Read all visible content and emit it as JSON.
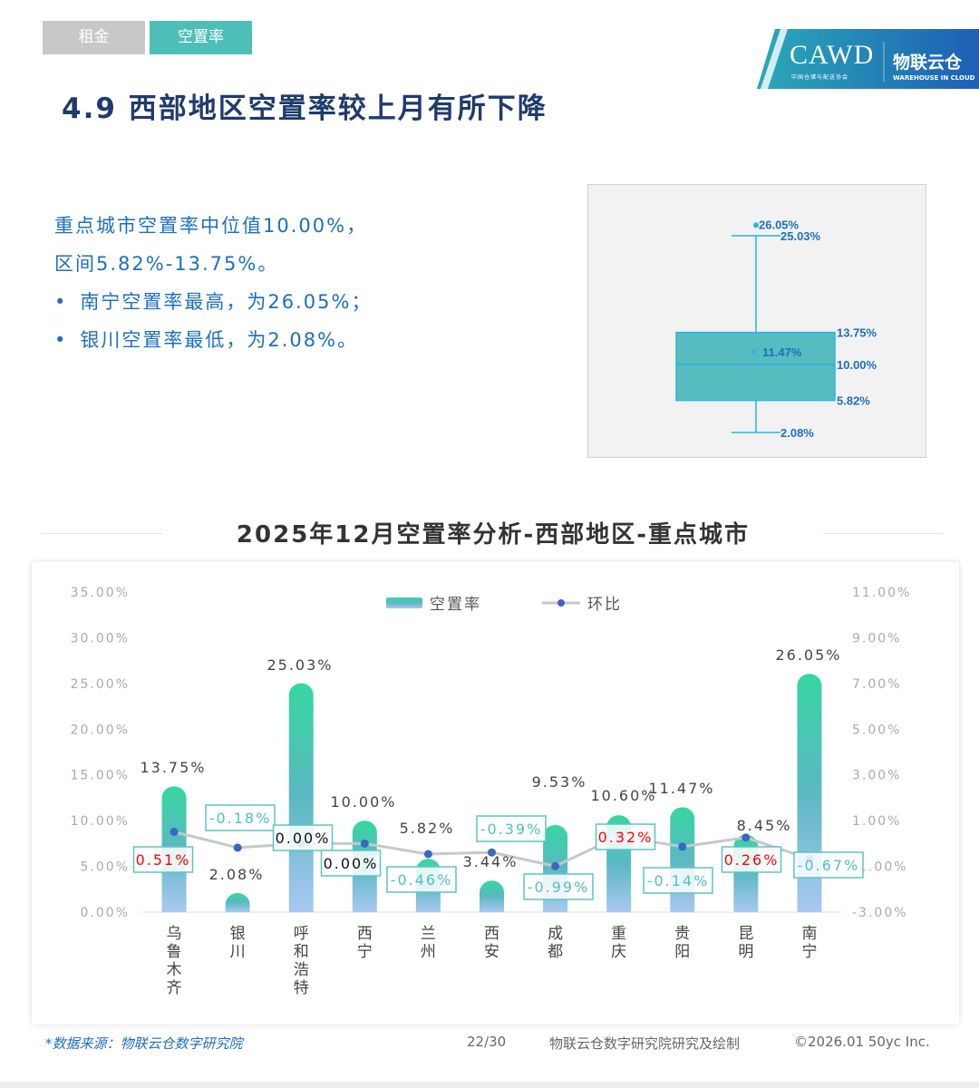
{
  "tabs": [
    {
      "label": "租金",
      "active": false,
      "color": "#c8c8c8"
    },
    {
      "label": "空置率",
      "active": true,
      "color": "#4dbfb8"
    }
  ],
  "logo": {
    "org1": "CAWD",
    "org1_sub": "中国仓储与配送协会",
    "org2": "物联云仓",
    "org2_sub": "WAREHOUSE IN CLOUD"
  },
  "heading": "4.9 西部地区空置率较上月有所下降",
  "summary": {
    "line1": "重点城市空置率中位值10.00%，",
    "line2": "区间5.82%-13.75%。",
    "bullets": [
      "南宁空置率最高，为26.05%；",
      "银川空置率最低，为2.08%。"
    ]
  },
  "boxplot": {
    "min": 2.08,
    "q1": 5.82,
    "median": 10.0,
    "mean": 11.47,
    "q3": 13.75,
    "max": 25.03,
    "outlier": 26.05,
    "labels": {
      "min": "2.08%",
      "q1": "5.82%",
      "median": "10.00%",
      "mean": "11.47%",
      "q3": "13.75%",
      "max": "25.03%",
      "outlier": "26.05%"
    }
  },
  "chart_title": "2025年12月空置率分析-西部地区-重点城市",
  "chart_data": {
    "type": "bar+line",
    "categories": [
      "乌鲁木齐",
      "银川",
      "呼和浩特",
      "西宁",
      "兰州",
      "西安",
      "成都",
      "重庆",
      "贵阳",
      "昆明",
      "南宁"
    ],
    "series": [
      {
        "name": "空置率",
        "type": "bar",
        "axis": "left",
        "values": [
          13.75,
          2.08,
          25.03,
          10.0,
          5.82,
          3.44,
          9.53,
          10.6,
          11.47,
          8.45,
          26.05
        ],
        "labels": [
          "13.75%",
          "2.08%",
          "25.03%",
          "10.00%",
          "5.82%",
          "3.44%",
          "9.53%",
          "10.60%",
          "11.47%",
          "8.45%",
          "26.05%"
        ]
      },
      {
        "name": "环比",
        "type": "line",
        "axis": "right",
        "values": [
          0.51,
          -0.18,
          0.0,
          0.0,
          -0.46,
          -0.39,
          -0.99,
          0.32,
          -0.14,
          0.26,
          -0.67
        ],
        "labels": [
          "0.51%",
          "-0.18%",
          "0.00%",
          "0.00%",
          "-0.46%",
          "-0.39%",
          "-0.99%",
          "0.32%",
          "-0.14%",
          "0.26%",
          "-0.67%"
        ]
      }
    ],
    "left_axis": {
      "range": [
        0,
        35
      ],
      "ticks": [
        "0.00%",
        "5.00%",
        "10.00%",
        "15.00%",
        "20.00%",
        "25.00%",
        "30.00%",
        "35.00%"
      ]
    },
    "right_axis": {
      "range": [
        -3,
        11
      ],
      "ticks": [
        "-3.00%",
        "-1.00%",
        "1.00%",
        "3.00%",
        "5.00%",
        "7.00%",
        "9.00%",
        "11.00%"
      ]
    },
    "legend": "top-center",
    "grid": false,
    "colors": {
      "bar_top": "#36d6a2",
      "bar_mid": "#5bb8c2",
      "bar_bottom": "#a9c8f2",
      "line": "#c8c8c8",
      "point": "#3a66c4",
      "positive": "#ff0000",
      "zero": "#111111",
      "negative": "#4fc1c0"
    }
  },
  "footer": {
    "source": "*数据来源：物联云仓数字研究院",
    "page": "22/30",
    "credit": "物联云仓数字研究院研究及绘制",
    "copyright": "©2026.01 50yc Inc."
  }
}
